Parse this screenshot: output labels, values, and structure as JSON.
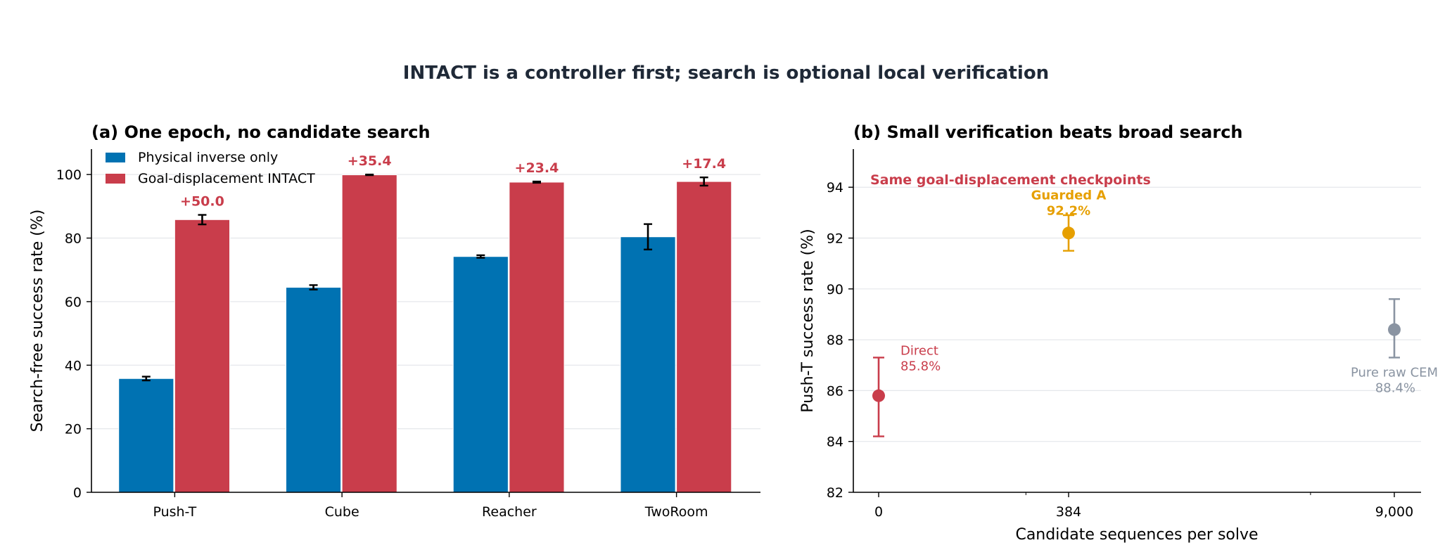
{
  "suptitle": "INTACT is a controller first; search is optional local verification",
  "colors": {
    "physical": "#0072b2",
    "intact": "#c93d4b",
    "guarded": "#e69f00",
    "cem": "#8a94a2",
    "text": "#1f2937"
  },
  "chart_data": [
    {
      "type": "bar",
      "title": "(a) One epoch, no candidate search",
      "ylabel": "Search-free success rate (%)",
      "xlabel": "",
      "ylim": [
        0,
        108
      ],
      "yticks": [
        0,
        20,
        40,
        60,
        80,
        100
      ],
      "grid": true,
      "legend_position": "top-left",
      "categories": [
        "Push-T",
        "Cube",
        "Reacher",
        "TwoRoom"
      ],
      "series": [
        {
          "name": "Physical inverse only",
          "color": "#0072b2",
          "values": [
            35.8,
            64.5,
            74.2,
            80.4
          ],
          "errors": [
            0.6,
            0.7,
            0.4,
            4.0
          ]
        },
        {
          "name": "Goal-displacement INTACT",
          "color": "#c93d4b",
          "values": [
            85.8,
            99.9,
            97.6,
            97.8
          ],
          "errors": [
            1.5,
            0.1,
            0.2,
            1.3
          ]
        }
      ],
      "annotations": [
        "+50.0",
        "+35.4",
        "+23.4",
        "+17.4"
      ]
    },
    {
      "type": "scatter",
      "title": "(b) Small verification beats broad search",
      "xlabel": "Candidate sequences per solve",
      "ylabel": "Push-T success rate (%)",
      "ylim": [
        82,
        95.5
      ],
      "yticks": [
        82,
        84,
        86,
        88,
        90,
        92,
        94
      ],
      "xticks": [
        0,
        384,
        9000
      ],
      "xtick_labels": [
        "0",
        "384",
        "9,000"
      ],
      "grid": true,
      "annotation": "Same goal-displacement checkpoints",
      "points": [
        {
          "name": "Direct",
          "label": "85.8%",
          "x": 0,
          "y": 85.8,
          "err_low": 84.2,
          "err_high": 87.3,
          "color": "#c93d4b"
        },
        {
          "name": "Guarded A",
          "label": "92.2%",
          "x": 384,
          "y": 92.2,
          "err_low": 91.5,
          "err_high": 92.9,
          "color": "#e69f00"
        },
        {
          "name": "Pure raw CEM",
          "label": "88.4%",
          "x": 9000,
          "y": 88.4,
          "err_low": 87.3,
          "err_high": 89.6,
          "color": "#8a94a2"
        }
      ]
    }
  ]
}
